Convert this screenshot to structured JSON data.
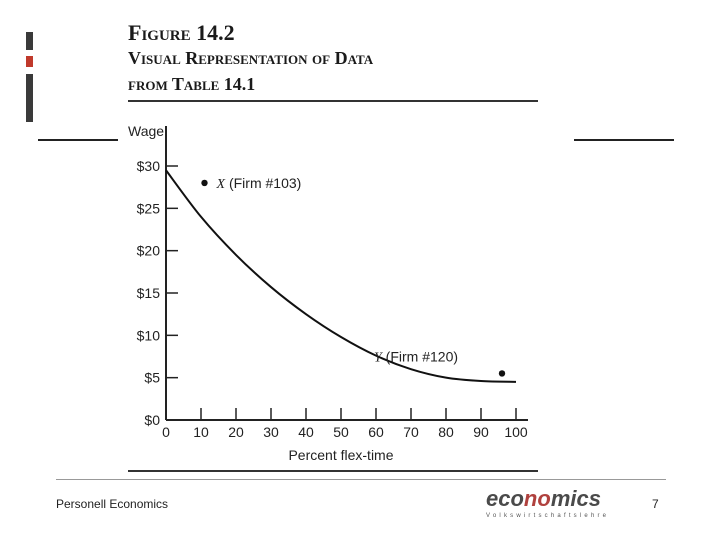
{
  "slide": {
    "footer_left": "Personell Economics",
    "page_number": "7",
    "logo_main": "economics",
    "logo_sub": "Volkswirtschaftslehre",
    "colors": {
      "deco_dark": "#3a3a3a",
      "deco_red": "#c0392b",
      "logo_accent": "#b0413e"
    }
  },
  "figure": {
    "title_line1": "Figure 14.2",
    "title_line2": "Visual Representation of Data",
    "title_line3": "from Table 14.1"
  },
  "chart_data": {
    "type": "line",
    "title": "",
    "xlabel": "Percent flex-time",
    "ylabel": "Wage",
    "xlim": [
      0,
      100
    ],
    "ylim": [
      0,
      30
    ],
    "x_ticks": [
      "0",
      "10",
      "20",
      "30",
      "40",
      "50",
      "60",
      "70",
      "80",
      "90",
      "100"
    ],
    "y_ticks": [
      "$0",
      "$5",
      "$10",
      "$15",
      "$20",
      "$25",
      "$30"
    ],
    "grid": false,
    "series": [
      {
        "name": "",
        "x": [
          0,
          10,
          20,
          30,
          40,
          50,
          60,
          70,
          80,
          90,
          100
        ],
        "y": [
          29.5,
          24.0,
          19.5,
          15.7,
          12.5,
          9.8,
          7.6,
          6.0,
          5.0,
          4.6,
          4.5
        ]
      }
    ],
    "points": [
      {
        "label": "X (Firm #103)",
        "x": 11,
        "y": 28
      },
      {
        "label": "Y (Firm #120)",
        "x": 96,
        "y": 5.5
      }
    ]
  }
}
